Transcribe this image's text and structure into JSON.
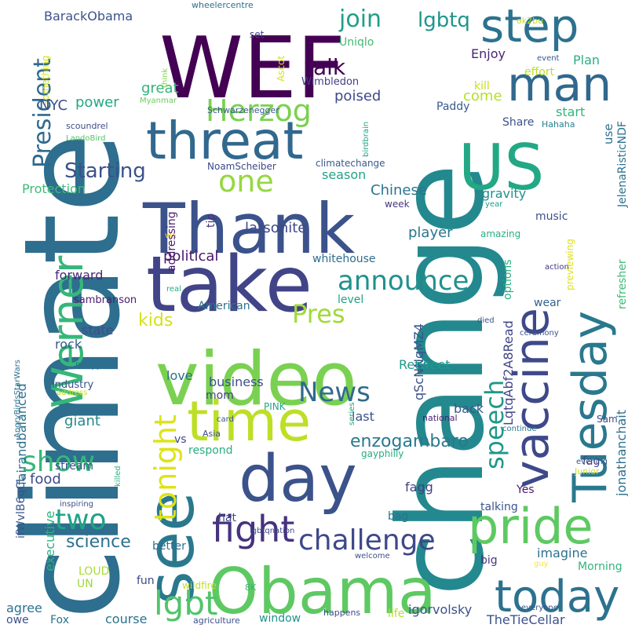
{
  "words": [
    {
      "text": "climate",
      "color": "#2e6e8e",
      "rotated": true
    },
    {
      "text": "change",
      "color": "#23898e",
      "rotated": true
    },
    {
      "text": "WEF",
      "color": "#440154",
      "rotated": false
    },
    {
      "text": "Obama",
      "color": "#5ec962",
      "rotated": false
    },
    {
      "text": "Thank",
      "color": "#3b528b",
      "rotated": false
    },
    {
      "text": "video",
      "color": "#7ad151",
      "rotated": false
    },
    {
      "text": "take",
      "color": "#414487",
      "rotated": false
    },
    {
      "text": "see",
      "color": "#2a788e",
      "rotated": true
    },
    {
      "text": "US",
      "color": "#22a884",
      "rotated": false
    },
    {
      "text": "day",
      "color": "#3b528b",
      "rotated": false
    },
    {
      "text": "time",
      "color": "#bddf26",
      "rotated": false
    },
    {
      "text": "threat",
      "color": "#31688e",
      "rotated": false
    },
    {
      "text": "vaccine",
      "color": "#3e4989",
      "rotated": true
    },
    {
      "text": "Tuesday",
      "color": "#2a788e",
      "rotated": true
    },
    {
      "text": "pride",
      "color": "#5ec962",
      "rotated": false
    },
    {
      "text": "man",
      "color": "#31688e",
      "rotated": false
    },
    {
      "text": "step",
      "color": "#2c728e",
      "rotated": false
    },
    {
      "text": "today",
      "color": "#2c728e",
      "rotated": false
    },
    {
      "text": "Werner",
      "color": "#35b779",
      "rotated": true
    },
    {
      "text": "fight",
      "color": "#46327e",
      "rotated": false
    },
    {
      "text": "tonight",
      "color": "#dde318",
      "rotated": true
    },
    {
      "text": "challenge",
      "color": "#3f4889",
      "rotated": false
    },
    {
      "text": "announce",
      "color": "#21918c",
      "rotated": false
    },
    {
      "text": "Herzog",
      "color": "#7ad151",
      "rotated": false
    },
    {
      "text": "one",
      "color": "#95d840",
      "rotated": false
    },
    {
      "text": "News",
      "color": "#306a8e",
      "rotated": false
    },
    {
      "text": "Pres",
      "color": "#a0da39",
      "rotated": false
    },
    {
      "text": "show",
      "color": "#35b779",
      "rotated": false
    },
    {
      "text": "lgbt",
      "color": "#50c46a",
      "rotated": false
    },
    {
      "text": "speech",
      "color": "#1f988b",
      "rotated": true
    },
    {
      "text": "two",
      "color": "#20a386",
      "rotated": false
    },
    {
      "text": "President",
      "color": "#306a8e",
      "rotated": true
    },
    {
      "text": "join",
      "color": "#1f9f88",
      "rotated": false
    },
    {
      "text": "lgbtq",
      "color": "#1f958b",
      "rotated": false
    },
    {
      "text": "talk",
      "color": "#440154",
      "rotated": false
    },
    {
      "text": "Starting",
      "color": "#3b528b",
      "rotated": false
    },
    {
      "text": "science",
      "color": "#2d708e",
      "rotated": false
    },
    {
      "text": "enzogambaro",
      "color": "#2a788e",
      "rotated": false
    },
    {
      "text": "BarackObama",
      "color": "#3b528b",
      "rotated": false
    },
    {
      "text": "Enjoy",
      "color": "#482677",
      "rotated": false
    },
    {
      "text": "Plan",
      "color": "#29af7f",
      "rotated": false
    },
    {
      "text": "effort",
      "color": "#bddf26",
      "rotated": false
    },
    {
      "text": "event",
      "color": "#38588c",
      "rotated": false
    },
    {
      "text": "Uniqlo",
      "color": "#3fbc73",
      "rotated": false
    },
    {
      "text": "set",
      "color": "#424086",
      "rotated": false
    },
    {
      "text": "wheelercentre",
      "color": "#2d718e",
      "rotated": false
    },
    {
      "text": "ok2bu",
      "color": "#c2df23",
      "rotated": false
    },
    {
      "text": "something",
      "color": "#d2e21b",
      "rotated": true
    },
    {
      "text": "Ascot",
      "color": "#d8e219",
      "rotated": true
    },
    {
      "text": "Wimbledon",
      "color": "#433e85",
      "rotated": false
    },
    {
      "text": "poised",
      "color": "#3e4a89",
      "rotated": false
    },
    {
      "text": "great",
      "color": "#31b57b",
      "rotated": false
    },
    {
      "text": "NYC",
      "color": "#3b528b",
      "rotated": false
    },
    {
      "text": "power",
      "color": "#23a983",
      "rotated": false
    },
    {
      "text": "executive",
      "color": "#2ab07f",
      "rotated": true
    },
    {
      "text": "Paddy",
      "color": "#375b8d",
      "rotated": false
    },
    {
      "text": "come",
      "color": "#b5de2b",
      "rotated": false
    },
    {
      "text": "kill",
      "color": "#c8e020",
      "rotated": false
    },
    {
      "text": "start",
      "color": "#31b57b",
      "rotated": false
    },
    {
      "text": "Hahaha",
      "color": "#26818e",
      "rotated": false
    },
    {
      "text": "Share",
      "color": "#3b528b",
      "rotated": false
    },
    {
      "text": "Myanmar",
      "color": "#6ccd5a",
      "rotated": false
    },
    {
      "text": "think",
      "color": "#7fd34e",
      "rotated": true
    },
    {
      "text": "Schwarzenegger",
      "color": "#375a8c",
      "rotated": false
    },
    {
      "text": "scoundrel",
      "color": "#3d4e8a",
      "rotated": false
    },
    {
      "text": "LandoBird",
      "color": "#54c568",
      "rotated": false
    },
    {
      "text": "JelenaRisticNDF",
      "color": "#2c728e",
      "rotated": true
    },
    {
      "text": "use",
      "color": "#2e6f8e",
      "rotated": true
    },
    {
      "text": "NoamScheiber",
      "color": "#3e4a89",
      "rotated": false
    },
    {
      "text": "climatechange",
      "color": "#38598c",
      "rotated": false
    },
    {
      "text": "season",
      "color": "#20a486",
      "rotated": false
    },
    {
      "text": "Chinese",
      "color": "#2b758e",
      "rotated": false
    },
    {
      "text": "week",
      "color": "#453781",
      "rotated": false
    },
    {
      "text": "year",
      "color": "#1e9c89",
      "rotated": false
    },
    {
      "text": "Protection",
      "color": "#3dbc74",
      "rotated": false
    },
    {
      "text": "gravity",
      "color": "#218f8d",
      "rotated": false
    },
    {
      "text": "music",
      "color": "#3b528b",
      "rotated": false
    },
    {
      "text": "amazing",
      "color": "#29af7f",
      "rotated": false
    },
    {
      "text": "birdbrain",
      "color": "#20a486",
      "rotated": true
    },
    {
      "text": "tip",
      "color": "#46337f",
      "rotated": true
    },
    {
      "text": "larsonite",
      "color": "#3e4989",
      "rotated": false
    },
    {
      "text": "player",
      "color": "#2a768e",
      "rotated": false
    },
    {
      "text": "via",
      "color": "#fde725",
      "rotated": false
    },
    {
      "text": "political",
      "color": "#481769",
      "rotated": false
    },
    {
      "text": "addressing",
      "color": "#481b6d",
      "rotated": true
    },
    {
      "text": "whitehouse",
      "color": "#2f6c8e",
      "rotated": false
    },
    {
      "text": "options",
      "color": "#29af7f",
      "rotated": true
    },
    {
      "text": "previewing",
      "color": "#dde318",
      "rotated": true
    },
    {
      "text": "refresher",
      "color": "#3dbc74",
      "rotated": true
    },
    {
      "text": "forward",
      "color": "#482878",
      "rotated": false
    },
    {
      "text": "real",
      "color": "#25ac82",
      "rotated": false
    },
    {
      "text": "action",
      "color": "#46337f",
      "rotated": false
    },
    {
      "text": "sambranson",
      "color": "#482071",
      "rotated": false
    },
    {
      "text": "American",
      "color": "#2c728e",
      "rotated": false
    },
    {
      "text": "level",
      "color": "#20a386",
      "rotated": false
    },
    {
      "text": "kids",
      "color": "#d5e21a",
      "rotated": false
    },
    {
      "text": "state",
      "color": "#3d4e8a",
      "rotated": false
    },
    {
      "text": "qScNNqMZ4",
      "color": "#3b528b",
      "rotated": true
    },
    {
      "text": "LqtqAbf2A8Read",
      "color": "#414487",
      "rotated": true
    },
    {
      "text": "wear",
      "color": "#34618d",
      "rotated": false
    },
    {
      "text": "died",
      "color": "#3b528b",
      "rotated": false
    },
    {
      "text": "ceremony",
      "color": "#3b528b",
      "rotated": false
    },
    {
      "text": "AngryBirdsStarWars",
      "color": "#2c728e",
      "rotated": true
    },
    {
      "text": "rock",
      "color": "#38598c",
      "rotated": false
    },
    {
      "text": "Philippines",
      "color": "#2c728e",
      "rotated": false
    },
    {
      "text": "industry",
      "color": "#3b528b",
      "rotated": false
    },
    {
      "text": "love",
      "color": "#2e6e8e",
      "rotated": false
    },
    {
      "text": "business",
      "color": "#3b528b",
      "rotated": false
    },
    {
      "text": "mom",
      "color": "#423f85",
      "rotated": false
    },
    {
      "text": "PINK",
      "color": "#22a785",
      "rotated": false
    },
    {
      "text": "Retweet",
      "color": "#1f9a8a",
      "rotated": false
    },
    {
      "text": "address",
      "color": "#c0df25",
      "rotated": false
    },
    {
      "text": "jonathanchait",
      "color": "#2d718e",
      "rotated": true
    },
    {
      "text": "fairandbalanced",
      "color": "#2d718e",
      "rotated": true
    },
    {
      "text": "back",
      "color": "#38598c",
      "rotated": false
    },
    {
      "text": "last",
      "color": "#3b528b",
      "rotated": false
    },
    {
      "text": "giant",
      "color": "#238a8d",
      "rotated": false
    },
    {
      "text": "Asia",
      "color": "#3e4a89",
      "rotated": false
    },
    {
      "text": "card",
      "color": "#3b528b",
      "rotated": false
    },
    {
      "text": "series",
      "color": "#20a486",
      "rotated": true
    },
    {
      "text": "national",
      "color": "#482173",
      "rotated": false
    },
    {
      "text": "continue",
      "color": "#2b758e",
      "rotated": false
    },
    {
      "text": "Sam",
      "color": "#3e4989",
      "rotated": false
    },
    {
      "text": "vs",
      "color": "#3e4989",
      "rotated": false
    },
    {
      "text": "respond",
      "color": "#29af7f",
      "rotated": false
    },
    {
      "text": "gayphilly",
      "color": "#25ab82",
      "rotated": false
    },
    {
      "text": "evening",
      "color": "#3b528b",
      "rotated": false
    },
    {
      "text": "fag",
      "color": "#3e4a89",
      "rotated": false
    },
    {
      "text": "Junior",
      "color": "#c8e020",
      "rotated": false
    },
    {
      "text": "food",
      "color": "#3e4989",
      "rotated": false
    },
    {
      "text": "stream",
      "color": "#3b528b",
      "rotated": false
    },
    {
      "text": "killed",
      "color": "#2ab07f",
      "rotated": true
    },
    {
      "text": "fagg",
      "color": "#424086",
      "rotated": false
    },
    {
      "text": "Yes",
      "color": "#481a6c",
      "rotated": false
    },
    {
      "text": "talking",
      "color": "#3a548c",
      "rotated": false
    },
    {
      "text": "inspiring",
      "color": "#3b528b",
      "rotated": false
    },
    {
      "text": "ifWvlB6qCL",
      "color": "#3b528b",
      "rotated": true
    },
    {
      "text": "hat",
      "color": "#3e4989",
      "rotated": false
    },
    {
      "text": "bag",
      "color": "#2d718e",
      "rotated": false
    },
    {
      "text": "lgbtqnation",
      "color": "#3e4989",
      "rotated": false
    },
    {
      "text": "imagine",
      "color": "#2c728e",
      "rotated": false
    },
    {
      "text": "better",
      "color": "#2e6e8e",
      "rotated": false
    },
    {
      "text": "big",
      "color": "#46337f",
      "rotated": false
    },
    {
      "text": "welcome",
      "color": "#3b528b",
      "rotated": false
    },
    {
      "text": "guy",
      "color": "#fde725",
      "rotated": false
    },
    {
      "text": "Morning",
      "color": "#31b57b",
      "rotated": false
    },
    {
      "text": "LOUD",
      "color": "#a8db34",
      "rotated": false
    },
    {
      "text": "UN",
      "color": "#9dd93b",
      "rotated": false
    },
    {
      "text": "fun",
      "color": "#3e4989",
      "rotated": false
    },
    {
      "text": "wildfire",
      "color": "#c0df25",
      "rotated": false
    },
    {
      "text": "8K",
      "color": "#31b57b",
      "rotated": false
    },
    {
      "text": "agree",
      "color": "#2c728e",
      "rotated": false
    },
    {
      "text": "course",
      "color": "#2c728e",
      "rotated": false
    },
    {
      "text": "window",
      "color": "#21918c",
      "rotated": false
    },
    {
      "text": "life",
      "color": "#b5de2b",
      "rotated": false
    },
    {
      "text": "igorvolsky",
      "color": "#3b528b",
      "rotated": false
    },
    {
      "text": "TheTieCellar",
      "color": "#3b528b",
      "rotated": false
    },
    {
      "text": "happens",
      "color": "#3e4989",
      "rotated": false
    },
    {
      "text": "everyone",
      "color": "#3b528b",
      "rotated": false
    },
    {
      "text": "owe",
      "color": "#3b528b",
      "rotated": false
    },
    {
      "text": "Fox",
      "color": "#2c728e",
      "rotated": false
    },
    {
      "text": "agriculture",
      "color": "#3b528b",
      "rotated": false
    }
  ]
}
